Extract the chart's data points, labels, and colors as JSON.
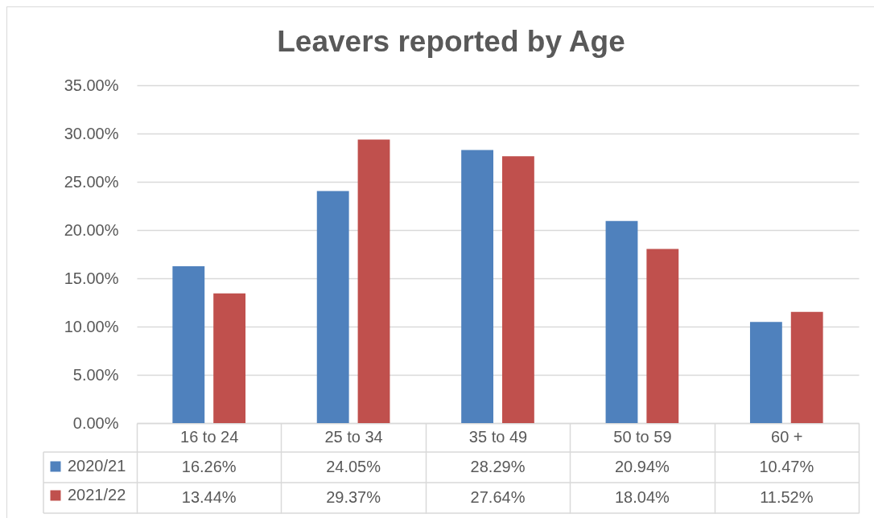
{
  "chart_data": {
    "type": "bar",
    "title": "Leavers reported by Age",
    "categories": [
      "16 to 24",
      "25 to 34",
      "35 to 49",
      "50 to 59",
      "60 +"
    ],
    "series": [
      {
        "name": "2020/21",
        "color": "#4f81bd",
        "values": [
          16.26,
          24.05,
          28.29,
          20.94,
          10.47
        ],
        "value_labels": [
          "16.26%",
          "24.05%",
          "28.29%",
          "20.94%",
          "10.47%"
        ]
      },
      {
        "name": "2021/22",
        "color": "#c0504d",
        "values": [
          13.44,
          29.37,
          27.64,
          18.04,
          11.52
        ],
        "value_labels": [
          "13.44%",
          "29.37%",
          "27.64%",
          "18.04%",
          "11.52%"
        ]
      }
    ],
    "ylim": [
      0,
      35
    ],
    "yticks": [
      {
        "value": 0,
        "label": "0.00%"
      },
      {
        "value": 5,
        "label": "5.00%"
      },
      {
        "value": 10,
        "label": "10.00%"
      },
      {
        "value": 15,
        "label": "15.00%"
      },
      {
        "value": 20,
        "label": "20.00%"
      },
      {
        "value": 25,
        "label": "25.00%"
      },
      {
        "value": 30,
        "label": "30.00%"
      },
      {
        "value": 35,
        "label": "35.00%"
      }
    ],
    "grid": "y",
    "legend": "bottom left"
  }
}
